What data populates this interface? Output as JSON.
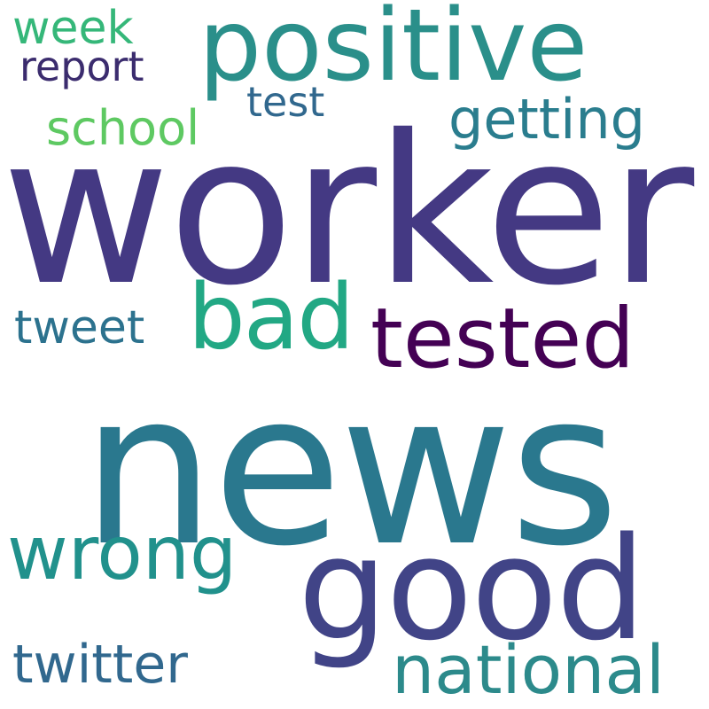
{
  "word_cloud": {
    "words": [
      {
        "text": "worker",
        "color": "#443983"
      },
      {
        "text": "news",
        "color": "#2a788e"
      },
      {
        "text": "positive",
        "color": "#2a8f8a"
      },
      {
        "text": "good",
        "color": "#414487"
      },
      {
        "text": "tested",
        "color": "#440154"
      },
      {
        "text": "bad",
        "color": "#22a884"
      },
      {
        "text": "wrong",
        "color": "#21918c"
      },
      {
        "text": "national",
        "color": "#2c8a8b"
      },
      {
        "text": "twitter",
        "color": "#31688e"
      },
      {
        "text": "getting",
        "color": "#2a7d8e"
      },
      {
        "text": "school",
        "color": "#5ec962"
      },
      {
        "text": "week",
        "color": "#35b779"
      },
      {
        "text": "report",
        "color": "#3b2c6e"
      },
      {
        "text": "test",
        "color": "#31688e"
      },
      {
        "text": "tweet",
        "color": "#2c728e"
      }
    ]
  }
}
